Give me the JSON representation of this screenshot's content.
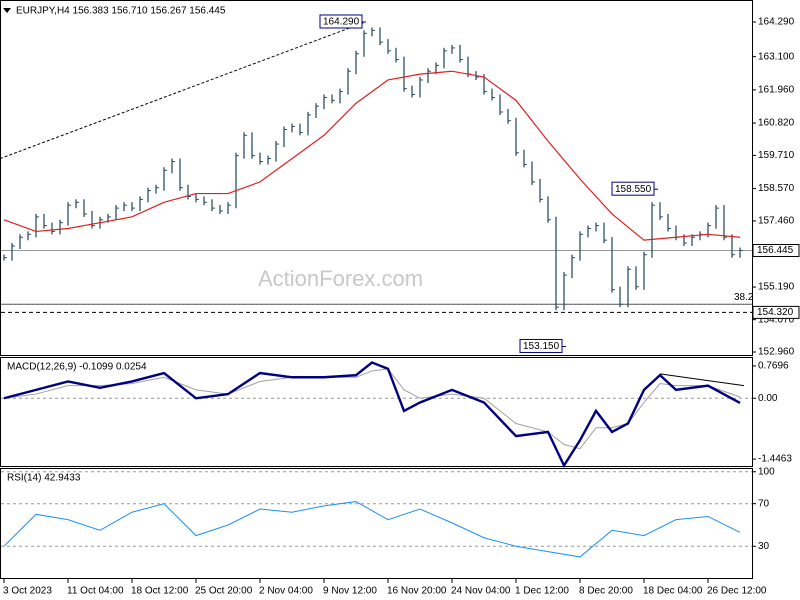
{
  "chart_data": {
    "type": "price",
    "title": "EURJPY,H4  156.383 156.710 156.267 156.445",
    "watermark": "ActionForex.com",
    "xticks": [
      {
        "value": 0,
        "label": "3 Oct 2023"
      },
      {
        "value": 8,
        "label": "11 Oct 04:00"
      },
      {
        "value": 16,
        "label": "18 Oct 12:00"
      },
      {
        "value": 24,
        "label": "25 Oct 20:00"
      },
      {
        "value": 32,
        "label": "2 Nov 04:00"
      },
      {
        "value": 40,
        "label": "9 Nov 12:00"
      },
      {
        "value": 48,
        "label": "16 Nov 20:00"
      },
      {
        "value": 56,
        "label": "24 Nov 04:00"
      },
      {
        "value": 64,
        "label": "1 Dec 12:00"
      },
      {
        "value": 72,
        "label": "8 Dec 20:00"
      },
      {
        "value": 80,
        "label": "18 Dec 04:00"
      },
      {
        "value": 88,
        "label": "26 Dec 12:00"
      }
    ],
    "ylim": [
      152.857,
      165.045
    ],
    "yticks": [
      {
        "value": 164.29,
        "label": "164.290"
      },
      {
        "value": 163.1,
        "label": "163.100"
      },
      {
        "value": 161.96,
        "label": "161.960"
      },
      {
        "value": 160.82,
        "label": "160.820"
      },
      {
        "value": 159.71,
        "label": "159.710"
      },
      {
        "value": 158.57,
        "label": "158.570"
      },
      {
        "value": 157.46,
        "label": "157.460"
      },
      {
        "value": 155.19,
        "label": "155.190"
      },
      {
        "value": 154.07,
        "label": "154.070"
      },
      {
        "value": 152.96,
        "label": "152.960"
      }
    ],
    "series": [
      {
        "color": "#2f5060",
        "values": [
          156.2,
          156.6,
          156.9,
          157.0,
          157.6,
          157.3,
          157.1,
          157.4,
          158.0,
          158.1,
          157.7,
          157.3,
          157.5,
          157.6,
          157.9,
          158.0,
          157.9,
          158.2,
          158.5,
          158.6,
          159.2,
          159.5,
          158.6,
          158.3,
          158.2,
          158.1,
          157.9,
          157.8,
          158.0,
          159.7,
          160.4,
          159.7,
          159.5,
          159.6,
          160.1,
          160.6,
          160.7,
          160.5,
          161.1,
          161.4,
          161.7,
          161.6,
          161.9,
          162.6,
          163.2,
          163.9,
          164.0,
          163.6,
          163.3,
          163.0,
          162.0,
          161.8,
          162.3,
          162.6,
          162.8,
          163.3,
          163.4,
          163.0,
          162.5,
          162.4,
          161.9,
          161.7,
          161.2,
          160.9,
          159.8,
          159.4,
          158.8,
          158.2,
          157.5,
          154.5,
          155.6,
          156.2,
          157.0,
          157.2,
          157.3,
          156.8,
          155.1,
          154.6,
          155.8,
          155.2,
          156.3,
          158.0,
          157.6,
          157.2,
          156.9,
          156.7,
          156.9,
          157.0,
          157.3,
          157.9,
          156.9,
          156.3,
          156.445
        ]
      },
      {
        "color": "#e02020",
        "x": [
          0,
          4,
          8,
          12,
          16,
          20,
          24,
          28,
          32,
          36,
          40,
          44,
          48,
          52,
          56,
          60,
          64,
          68,
          72,
          76,
          80,
          84,
          88,
          92
        ],
        "values": [
          157.5,
          157.1,
          157.2,
          157.4,
          157.6,
          158.1,
          158.4,
          158.4,
          158.8,
          159.6,
          160.4,
          161.5,
          162.3,
          162.5,
          162.6,
          162.4,
          161.6,
          160.2,
          158.9,
          157.7,
          156.8,
          156.9,
          157.0,
          156.9
        ]
      }
    ],
    "levels": [
      {
        "value": 156.445,
        "label": "156.445",
        "style": "solid",
        "boxed": true
      },
      {
        "value": 154.32,
        "label": "154.320",
        "style": "dashed",
        "boxed": true
      },
      {
        "value": 154.6,
        "label": "38.2",
        "style": "solid",
        "boxed": false
      }
    ],
    "trendline": {
      "x": [
        -0.5,
        45.2
      ],
      "values": [
        159.6,
        164.29
      ]
    },
    "annotations": [
      {
        "label": "164.290",
        "x": 45,
        "value": 164.29
      },
      {
        "label": "158.550",
        "x": 81.5,
        "value": 158.55
      },
      {
        "label": "153.150",
        "x": 70,
        "value": 153.15
      }
    ],
    "macd": {
      "title": "MACD(12,26,9) -0.1099 0.0254",
      "ylim": [
        -1.611,
        0.958
      ],
      "yticks": [
        0.7696,
        {
          "value": 0,
          "label": "0.00"
        },
        -1.4463
      ],
      "x": [
        0,
        4,
        8,
        12,
        16,
        20,
        24,
        28,
        32,
        36,
        40,
        44,
        46,
        48,
        50,
        52,
        56,
        60,
        64,
        68,
        70,
        72,
        74,
        76,
        78,
        80,
        82,
        84,
        88,
        92
      ],
      "series": [
        {
          "color": "#000080",
          "values": [
            0.0,
            0.2,
            0.4,
            0.25,
            0.4,
            0.6,
            0.0,
            0.1,
            0.6,
            0.5,
            0.5,
            0.55,
            0.85,
            0.7,
            -0.3,
            -0.1,
            0.2,
            -0.1,
            -0.9,
            -0.8,
            -1.6,
            -1.0,
            -0.3,
            -0.8,
            -0.6,
            0.2,
            0.55,
            0.2,
            0.3,
            -0.11
          ]
        },
        {
          "color": "#a0a0a0",
          "values": [
            0.0,
            0.1,
            0.3,
            0.3,
            0.35,
            0.5,
            0.2,
            0.1,
            0.4,
            0.5,
            0.5,
            0.5,
            0.65,
            0.7,
            0.2,
            0.0,
            0.1,
            0.0,
            -0.6,
            -0.8,
            -1.1,
            -1.2,
            -0.7,
            -0.7,
            -0.6,
            -0.1,
            0.35,
            0.3,
            0.3,
            0.03
          ]
        }
      ],
      "trendline": {
        "x": [
          82,
          92.5
        ],
        "values": [
          0.58,
          0.3
        ]
      }
    },
    "rsi": {
      "title": "RSI(14) 42.9433",
      "ylim": [
        0.2,
        102.6
      ],
      "yticks": [
        100,
        70,
        30
      ],
      "x": [
        0,
        4,
        8,
        12,
        16,
        20,
        24,
        28,
        32,
        36,
        40,
        44,
        48,
        52,
        56,
        60,
        64,
        68,
        72,
        76,
        80,
        84,
        88,
        92
      ],
      "series": [
        {
          "color": "#1e90ff",
          "values": [
            30,
            60,
            55,
            45,
            62,
            70,
            40,
            50,
            65,
            62,
            68,
            72,
            55,
            65,
            52,
            38,
            30,
            25,
            20,
            45,
            40,
            55,
            58,
            43
          ]
        }
      ]
    }
  }
}
